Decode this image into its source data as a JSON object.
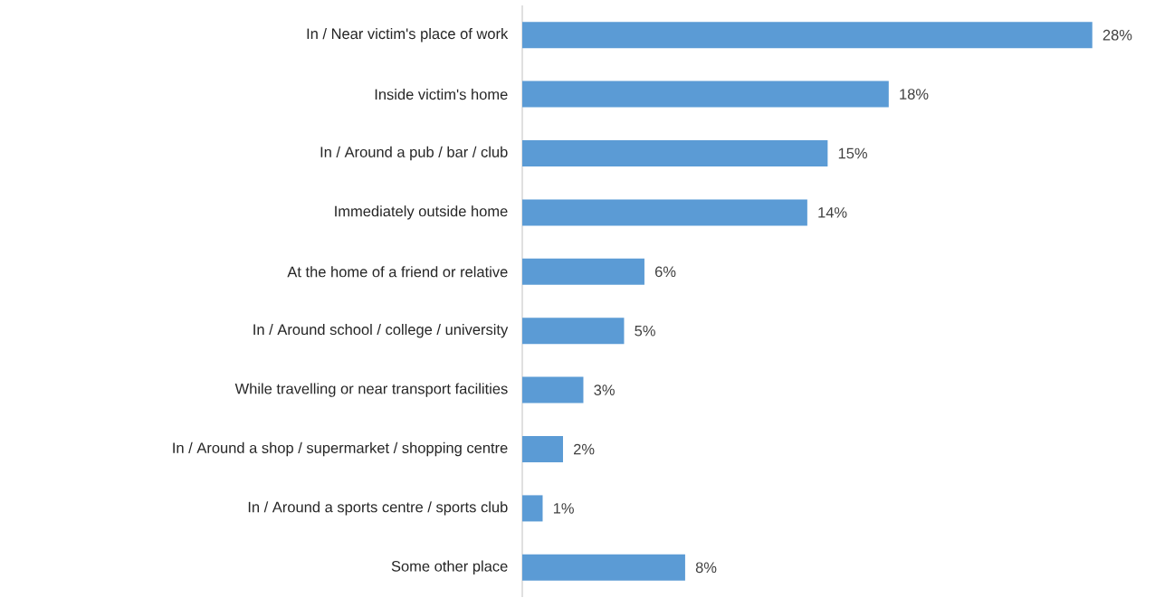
{
  "chart_data": {
    "type": "bar",
    "orientation": "horizontal",
    "color": "#5b9bd5",
    "categories": [
      "In / Near victim's place of work",
      "Inside victim's home",
      "In / Around a pub / bar / club",
      "Immediately outside home",
      "At the home of a friend or relative",
      "In / Around school / college / university",
      "While travelling or near transport facilities",
      "In / Around a shop / supermarket / shopping centre",
      "In / Around a sports centre / sports club",
      "Some other place"
    ],
    "values": [
      28,
      18,
      15,
      14,
      6,
      5,
      3,
      2,
      1,
      8
    ],
    "value_labels": [
      "28%",
      "18%",
      "15%",
      "14%",
      "6%",
      "5%",
      "3%",
      "2%",
      "1%",
      "8%"
    ]
  }
}
